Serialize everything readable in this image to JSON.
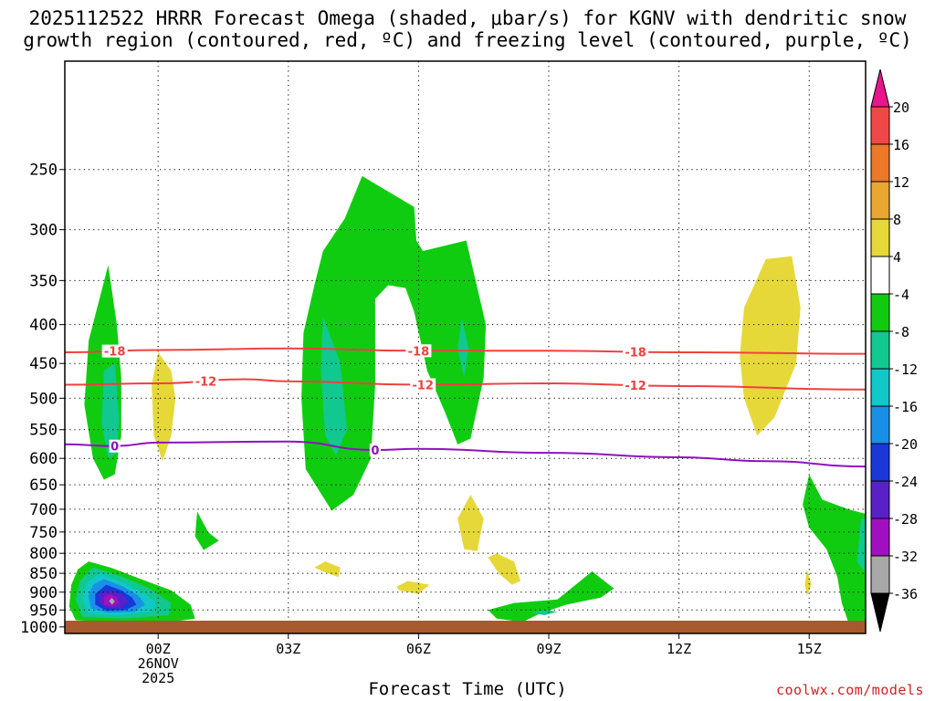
{
  "title_line1": "2025112522 HRRR Forecast Omega (shaded, μbar/s) for KGNV with dendritic snow",
  "title_line2": "growth region (contoured, red, ºC) and freezing level (contoured, purple, ºC)",
  "credit": "coolwx.com/models",
  "chart_data": {
    "type": "contour",
    "xlabel": "Forecast Time (UTC)",
    "ylabel": "",
    "x_range": [
      -2.15,
      16.3
    ],
    "y_range": [
      1020,
      180
    ],
    "y_scale": "log-pressure",
    "x_ticks": [
      {
        "x": 0,
        "lines": [
          "00Z",
          "26NOV",
          "2025"
        ]
      },
      {
        "x": 3,
        "lines": [
          "03Z"
        ]
      },
      {
        "x": 6,
        "lines": [
          "06Z"
        ]
      },
      {
        "x": 9,
        "lines": [
          "09Z"
        ]
      },
      {
        "x": 12,
        "lines": [
          "12Z"
        ]
      },
      {
        "x": 15,
        "lines": [
          "15Z"
        ]
      }
    ],
    "y_ticks": [
      250,
      300,
      350,
      400,
      450,
      500,
      550,
      600,
      650,
      700,
      750,
      800,
      850,
      900,
      950,
      1000
    ],
    "grid": true,
    "colorbar": {
      "labels": [
        "20",
        "16",
        "12",
        "8",
        "4",
        "-4",
        "-8",
        "-12",
        "-16",
        "-20",
        "-24",
        "-28",
        "-32",
        "-36"
      ],
      "bins": [
        {
          "color": "#e8168a"
        },
        {
          "color": "#f04848"
        },
        {
          "color": "#ec7828"
        },
        {
          "color": "#e8a830"
        },
        {
          "color": "#e6d838"
        },
        {
          "color": "#ffffff"
        },
        {
          "color": "#10cc10"
        },
        {
          "color": "#10c890"
        },
        {
          "color": "#10c8c8"
        },
        {
          "color": "#1890e8"
        },
        {
          "color": "#1838d8"
        },
        {
          "color": "#5a20c8"
        },
        {
          "color": "#a010c0"
        },
        {
          "color": "#a8a8a8"
        },
        {
          "color": "#000000"
        }
      ]
    },
    "isotherms": [
      {
        "label": "-18",
        "color": "#f04040",
        "points": [
          [
            -2.15,
            435
          ],
          [
            0,
            432
          ],
          [
            3,
            430
          ],
          [
            6,
            433
          ],
          [
            9,
            433
          ],
          [
            12,
            435
          ],
          [
            16.3,
            437
          ]
        ],
        "label_x": [
          -1.0,
          6.0,
          11.0
        ]
      },
      {
        "label": "-12",
        "color": "#f04040",
        "points": [
          [
            -2.15,
            480
          ],
          [
            0,
            478
          ],
          [
            2,
            472
          ],
          [
            3,
            475
          ],
          [
            6,
            480
          ],
          [
            9,
            478
          ],
          [
            12,
            482
          ],
          [
            16.3,
            487
          ]
        ],
        "label_x": [
          1.1,
          6.1,
          11.0
        ]
      },
      {
        "label": "0",
        "color": "#9010c0",
        "points": [
          [
            -2.15,
            575
          ],
          [
            -1,
            578
          ],
          [
            0,
            572
          ],
          [
            3,
            570
          ],
          [
            5,
            585
          ],
          [
            6,
            583
          ],
          [
            9,
            590
          ],
          [
            12,
            598
          ],
          [
            14,
            605
          ],
          [
            16.3,
            615
          ]
        ],
        "label_x": [
          -1.0,
          5.0
        ]
      }
    ],
    "omega_regions": [
      {
        "color": "#10cc10",
        "points": [
          [
            -1.15,
            334
          ],
          [
            -0.95,
            400
          ],
          [
            -0.85,
            470
          ],
          [
            -0.85,
            560
          ],
          [
            -1.0,
            630
          ],
          [
            -1.25,
            640
          ],
          [
            -1.5,
            600
          ],
          [
            -1.7,
            510
          ],
          [
            -1.6,
            420
          ]
        ]
      },
      {
        "color": "#10c890",
        "points": [
          [
            -1.0,
            450
          ],
          [
            -0.9,
            530
          ],
          [
            -0.95,
            590
          ],
          [
            -1.15,
            600
          ],
          [
            -1.3,
            540
          ],
          [
            -1.25,
            460
          ]
        ]
      },
      {
        "color": "#e6d838",
        "points": [
          [
            0.0,
            435
          ],
          [
            0.3,
            460
          ],
          [
            0.4,
            500
          ],
          [
            0.3,
            560
          ],
          [
            0.1,
            605
          ],
          [
            -0.1,
            560
          ],
          [
            -0.15,
            480
          ]
        ]
      },
      {
        "color": "#10cc10",
        "points": [
          [
            0.9,
            705
          ],
          [
            1.15,
            750
          ],
          [
            1.4,
            770
          ],
          [
            1.05,
            792
          ],
          [
            0.85,
            760
          ]
        ]
      },
      {
        "color": "#10cc10",
        "points": [
          [
            4.7,
            255
          ],
          [
            5.9,
            280
          ],
          [
            5.95,
            310
          ],
          [
            6.1,
            320
          ],
          [
            7.1,
            310
          ],
          [
            7.55,
            400
          ],
          [
            7.5,
            470
          ],
          [
            7.2,
            565
          ],
          [
            6.9,
            575
          ],
          [
            6.6,
            520
          ],
          [
            6.2,
            460
          ],
          [
            5.9,
            385
          ],
          [
            5.7,
            358
          ],
          [
            5.3,
            355
          ],
          [
            5.0,
            370
          ],
          [
            5.0,
            480
          ],
          [
            4.9,
            600
          ],
          [
            4.5,
            670
          ],
          [
            4.0,
            703
          ],
          [
            3.4,
            620
          ],
          [
            3.3,
            500
          ],
          [
            3.35,
            410
          ],
          [
            3.6,
            355
          ],
          [
            3.8,
            320
          ],
          [
            4.3,
            290
          ]
        ]
      },
      {
        "color": "#10c890",
        "points": [
          [
            3.8,
            390
          ],
          [
            4.2,
            450
          ],
          [
            4.35,
            550
          ],
          [
            4.1,
            595
          ],
          [
            3.85,
            560
          ],
          [
            3.75,
            460
          ]
        ]
      },
      {
        "color": "#10c890",
        "points": [
          [
            7.0,
            392
          ],
          [
            7.15,
            430
          ],
          [
            7.05,
            470
          ],
          [
            6.9,
            430
          ]
        ]
      },
      {
        "color": "#e6d838",
        "points": [
          [
            7.2,
            670
          ],
          [
            7.5,
            720
          ],
          [
            7.35,
            795
          ],
          [
            7.05,
            790
          ],
          [
            6.9,
            720
          ]
        ]
      },
      {
        "color": "#e6d838",
        "points": [
          [
            3.85,
            820
          ],
          [
            4.2,
            835
          ],
          [
            4.15,
            860
          ],
          [
            3.8,
            845
          ],
          [
            3.6,
            835
          ]
        ]
      },
      {
        "color": "#e6d838",
        "points": [
          [
            5.75,
            870
          ],
          [
            6.25,
            880
          ],
          [
            6.0,
            905
          ],
          [
            5.55,
            895
          ],
          [
            5.5,
            885
          ]
        ]
      },
      {
        "color": "#e6d838",
        "points": [
          [
            7.8,
            800
          ],
          [
            8.2,
            820
          ],
          [
            8.35,
            870
          ],
          [
            8.15,
            880
          ],
          [
            7.85,
            850
          ],
          [
            7.6,
            810
          ]
        ]
      },
      {
        "color": "#10cc10",
        "points": [
          [
            10.0,
            845
          ],
          [
            10.5,
            890
          ],
          [
            10.2,
            915
          ],
          [
            9.4,
            935
          ],
          [
            8.8,
            960
          ],
          [
            8.4,
            985
          ],
          [
            7.8,
            975
          ],
          [
            7.6,
            950
          ],
          [
            8.2,
            930
          ],
          [
            9.2,
            920
          ]
        ]
      },
      {
        "color": "#10c890",
        "points": [
          [
            8.9,
            950
          ],
          [
            9.2,
            955
          ],
          [
            8.9,
            965
          ],
          [
            8.6,
            958
          ]
        ]
      },
      {
        "color": "#e6d838",
        "points": [
          [
            14.0,
            328
          ],
          [
            14.6,
            325
          ],
          [
            14.8,
            380
          ],
          [
            14.7,
            450
          ],
          [
            14.2,
            530
          ],
          [
            13.8,
            560
          ],
          [
            13.5,
            500
          ],
          [
            13.4,
            440
          ],
          [
            13.5,
            380
          ]
        ]
      },
      {
        "color": "#e6d838",
        "points": [
          [
            14.95,
            840
          ],
          [
            15.05,
            880
          ],
          [
            14.95,
            910
          ],
          [
            14.9,
            880
          ]
        ]
      },
      {
        "color": "#10cc10",
        "points": [
          [
            15.0,
            630
          ],
          [
            15.3,
            680
          ],
          [
            15.9,
            700
          ],
          [
            16.3,
            710
          ],
          [
            16.3,
            985
          ],
          [
            15.9,
            985
          ],
          [
            15.75,
            930
          ],
          [
            15.65,
            860
          ],
          [
            15.4,
            790
          ],
          [
            15.0,
            740
          ],
          [
            14.85,
            690
          ]
        ]
      },
      {
        "color": "#10c890",
        "points": [
          [
            16.2,
            720
          ],
          [
            16.3,
            720
          ],
          [
            16.3,
            850
          ],
          [
            16.1,
            820
          ]
        ]
      },
      {
        "color": "#10cc10",
        "points": [
          [
            -1.6,
            820
          ],
          [
            -1.1,
            835
          ],
          [
            -0.4,
            865
          ],
          [
            0.3,
            895
          ],
          [
            0.75,
            935
          ],
          [
            0.85,
            975
          ],
          [
            0.3,
            985
          ],
          [
            -1.0,
            985
          ],
          [
            -1.9,
            980
          ],
          [
            -2.05,
            940
          ],
          [
            -2.0,
            880
          ],
          [
            -1.85,
            840
          ]
        ]
      },
      {
        "color": "#10c890",
        "points": [
          [
            -1.5,
            835
          ],
          [
            -0.8,
            860
          ],
          [
            -0.2,
            890
          ],
          [
            0.3,
            930
          ],
          [
            0.25,
            965
          ],
          [
            -0.8,
            975
          ],
          [
            -1.75,
            970
          ],
          [
            -1.9,
            920
          ],
          [
            -1.8,
            870
          ]
        ]
      },
      {
        "color": "#10c8c8",
        "points": [
          [
            -1.35,
            850
          ],
          [
            -0.8,
            875
          ],
          [
            -0.3,
            905
          ],
          [
            -0.05,
            930
          ],
          [
            -0.15,
            955
          ],
          [
            -0.9,
            965
          ],
          [
            -1.6,
            960
          ],
          [
            -1.75,
            920
          ],
          [
            -1.65,
            875
          ]
        ]
      },
      {
        "color": "#1890e8",
        "points": [
          [
            -1.25,
            865
          ],
          [
            -0.8,
            885
          ],
          [
            -0.45,
            910
          ],
          [
            -0.3,
            935
          ],
          [
            -0.55,
            955
          ],
          [
            -1.15,
            958
          ],
          [
            -1.55,
            945
          ],
          [
            -1.6,
            910
          ],
          [
            -1.5,
            880
          ]
        ]
      },
      {
        "color": "#1838d8",
        "points": [
          [
            -1.2,
            880
          ],
          [
            -0.85,
            895
          ],
          [
            -0.6,
            915
          ],
          [
            -0.5,
            935
          ],
          [
            -0.75,
            950
          ],
          [
            -1.2,
            952
          ],
          [
            -1.45,
            935
          ],
          [
            -1.45,
            905
          ]
        ]
      },
      {
        "color": "#5a20c8",
        "points": [
          [
            -1.15,
            895
          ],
          [
            -0.85,
            905
          ],
          [
            -0.7,
            925
          ],
          [
            -0.85,
            945
          ],
          [
            -1.15,
            945
          ],
          [
            -1.35,
            930
          ],
          [
            -1.35,
            905
          ]
        ]
      },
      {
        "color": "#a010c0",
        "points": [
          [
            -1.1,
            905
          ],
          [
            -0.95,
            915
          ],
          [
            -0.9,
            930
          ],
          [
            -1.05,
            940
          ],
          [
            -1.25,
            935
          ],
          [
            -1.25,
            912
          ]
        ]
      },
      {
        "color": "#a8a8a8",
        "points": [
          [
            -1.07,
            915
          ],
          [
            -1.0,
            925
          ],
          [
            -1.06,
            935
          ],
          [
            -1.13,
            925
          ]
        ]
      }
    ]
  }
}
